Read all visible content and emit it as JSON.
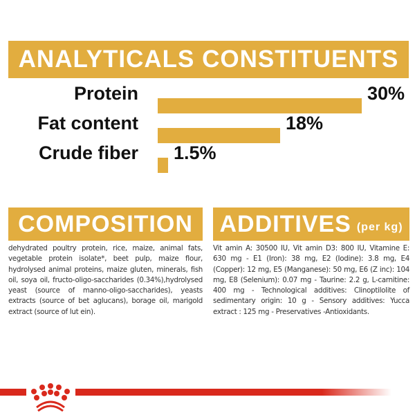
{
  "analytical": {
    "title": "ANALYTICALS CONSTITUENTS",
    "items": [
      {
        "label": "Protein",
        "value": "30%",
        "percent": 30
      },
      {
        "label": "Fat content",
        "value": "18%",
        "percent": 18
      },
      {
        "label": "Crude fiber",
        "value": "1.5%",
        "percent": 1.5
      }
    ]
  },
  "composition": {
    "title": "COMPOSITION",
    "text": "dehydrated poultry protein, rice, maize, animal fats, vegetable protein isolate*, beet pulp, maize flour, hydrolysed animal proteins, maize gluten, minerals, fish oil, soya oil, fructo-oligo-saccharides (0.34%),hydrolysed yeast (source of manno-oligo-saccharides), yeasts extracts (source of bet aglucans), borage oil, marigold extract (source of lut ein)."
  },
  "additives": {
    "title": "ADDITIVES",
    "unit": "(per kg)",
    "text": "Vit amin A: 30500 IU, Vit amin D3: 800 IU, Vitamine E: 630 mg - E1 (Iron): 38 mg, E2 (Iodine): 3.8 mg, E4 (Copper): 12 mg, E5 (Manganese): 50 mg, E6 (Z inc): 104 mg, E8 (Selenium): 0.07 mg - Taurine: 2.2 g, L-carnitine: 400 mg - Technological additives: Clinoptilolite of sedimentary origin: 10 g - Sensory additives: Yucca extract : 125 mg - Preservatives -Antioxidants."
  },
  "colors": {
    "accent": "#e2ad3f",
    "brand_red": "#d9291c"
  },
  "logo": {
    "icon": "royal-canin-crown-icon"
  }
}
